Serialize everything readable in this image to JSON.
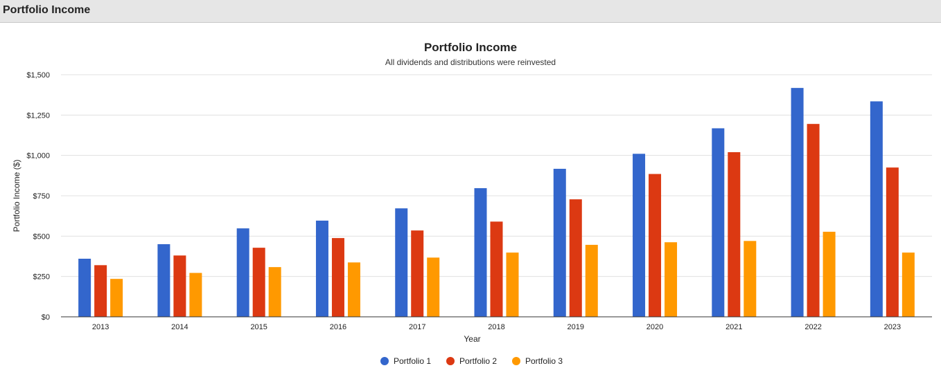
{
  "header": {
    "title": "Portfolio Income"
  },
  "chart_data": {
    "type": "bar",
    "title": "Portfolio Income",
    "subtitle": "All dividends and distributions were reinvested",
    "xlabel": "Year",
    "ylabel": "Portfolio Income ($)",
    "ylim": [
      0,
      1500
    ],
    "yticks": [
      0,
      250,
      500,
      750,
      1000,
      1250,
      1500
    ],
    "ytick_labels": [
      "$0",
      "$250",
      "$500",
      "$750",
      "$1,000",
      "$1,250",
      "$1,500"
    ],
    "grid": true,
    "legend_position": "bottom",
    "categories": [
      "2013",
      "2014",
      "2015",
      "2016",
      "2017",
      "2018",
      "2019",
      "2020",
      "2021",
      "2022",
      "2023"
    ],
    "series": [
      {
        "name": "Portfolio 1",
        "color": "#3366cc",
        "values": [
          360,
          450,
          548,
          596,
          672,
          797,
          917,
          1010,
          1168,
          1418,
          1335
        ]
      },
      {
        "name": "Portfolio 2",
        "color": "#dc3912",
        "values": [
          320,
          380,
          428,
          488,
          535,
          590,
          728,
          885,
          1020,
          1195,
          925
        ]
      },
      {
        "name": "Portfolio 3",
        "color": "#ff9900",
        "values": [
          235,
          272,
          308,
          337,
          367,
          398,
          446,
          462,
          470,
          527,
          398
        ]
      }
    ]
  }
}
